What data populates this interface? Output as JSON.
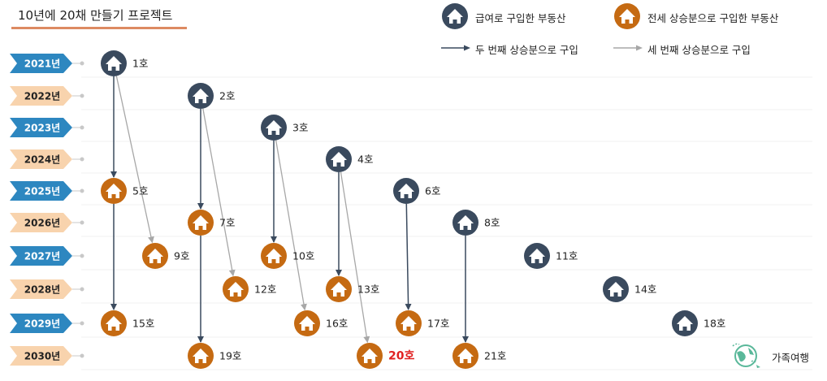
{
  "title": "10년에 20채 만들기 프로젝트",
  "legend": {
    "salary": "급여로 구입한 부동산",
    "jeonse": "전세 상승분으로 구입한 부동산",
    "second": "두 번째 상승분으로 구입",
    "third": "세 번째 상승분으로 구입"
  },
  "colors": {
    "salary": "#3a4a5e",
    "jeonse": "#c56a12",
    "dark_arrow": "#3a4a5e",
    "gray_arrow": "#a7a7a7",
    "red_label": "#e02020"
  },
  "years": [
    {
      "label": "2021년",
      "style": "blue"
    },
    {
      "label": "2022년",
      "style": "peach"
    },
    {
      "label": "2023년",
      "style": "blue"
    },
    {
      "label": "2024년",
      "style": "peach"
    },
    {
      "label": "2025년",
      "style": "blue"
    },
    {
      "label": "2026년",
      "style": "peach"
    },
    {
      "label": "2027년",
      "style": "blue"
    },
    {
      "label": "2028년",
      "style": "peach"
    },
    {
      "label": "2029년",
      "style": "blue"
    },
    {
      "label": "2030년",
      "style": "peach"
    }
  ],
  "houses": [
    {
      "label": "1호",
      "year": 0,
      "type": "salary"
    },
    {
      "label": "2호",
      "year": 1,
      "type": "salary"
    },
    {
      "label": "3호",
      "year": 2,
      "type": "salary"
    },
    {
      "label": "4호",
      "year": 3,
      "type": "salary"
    },
    {
      "label": "5호",
      "year": 4,
      "type": "jeonse"
    },
    {
      "label": "6호",
      "year": 4,
      "type": "salary"
    },
    {
      "label": "7호",
      "year": 5,
      "type": "jeonse"
    },
    {
      "label": "8호",
      "year": 5,
      "type": "salary"
    },
    {
      "label": "9호",
      "year": 6,
      "type": "jeonse"
    },
    {
      "label": "10호",
      "year": 6,
      "type": "jeonse"
    },
    {
      "label": "11호",
      "year": 6,
      "type": "salary"
    },
    {
      "label": "12호",
      "year": 7,
      "type": "jeonse"
    },
    {
      "label": "13호",
      "year": 7,
      "type": "jeonse"
    },
    {
      "label": "14호",
      "year": 7,
      "type": "salary"
    },
    {
      "label": "15호",
      "year": 8,
      "type": "jeonse"
    },
    {
      "label": "16호",
      "year": 8,
      "type": "jeonse"
    },
    {
      "label": "17호",
      "year": 8,
      "type": "jeonse"
    },
    {
      "label": "18호",
      "year": 8,
      "type": "salary"
    },
    {
      "label": "19호",
      "year": 9,
      "type": "jeonse"
    },
    {
      "label": "20호",
      "year": 9,
      "type": "jeonse",
      "highlight": true
    },
    {
      "label": "21호",
      "year": 9,
      "type": "jeonse"
    }
  ],
  "arrows": [
    {
      "from": "1호",
      "to": "5호",
      "kind": "second"
    },
    {
      "from": "1호",
      "to": "9호",
      "kind": "third"
    },
    {
      "from": "5호",
      "to": "15호",
      "kind": "second"
    },
    {
      "from": "2호",
      "to": "7호",
      "kind": "second"
    },
    {
      "from": "2호",
      "to": "12호",
      "kind": "third"
    },
    {
      "from": "7호",
      "to": "19호",
      "kind": "second"
    },
    {
      "from": "3호",
      "to": "10호",
      "kind": "second"
    },
    {
      "from": "3호",
      "to": "16호",
      "kind": "third"
    },
    {
      "from": "4호",
      "to": "13호",
      "kind": "second"
    },
    {
      "from": "4호",
      "to": "20호",
      "kind": "third"
    },
    {
      "from": "6호",
      "to": "17호",
      "kind": "second"
    },
    {
      "from": "8호",
      "to": "21호",
      "kind": "second"
    }
  ],
  "footer": {
    "text": "가족여행",
    "icon": "globe-plane-icon"
  }
}
